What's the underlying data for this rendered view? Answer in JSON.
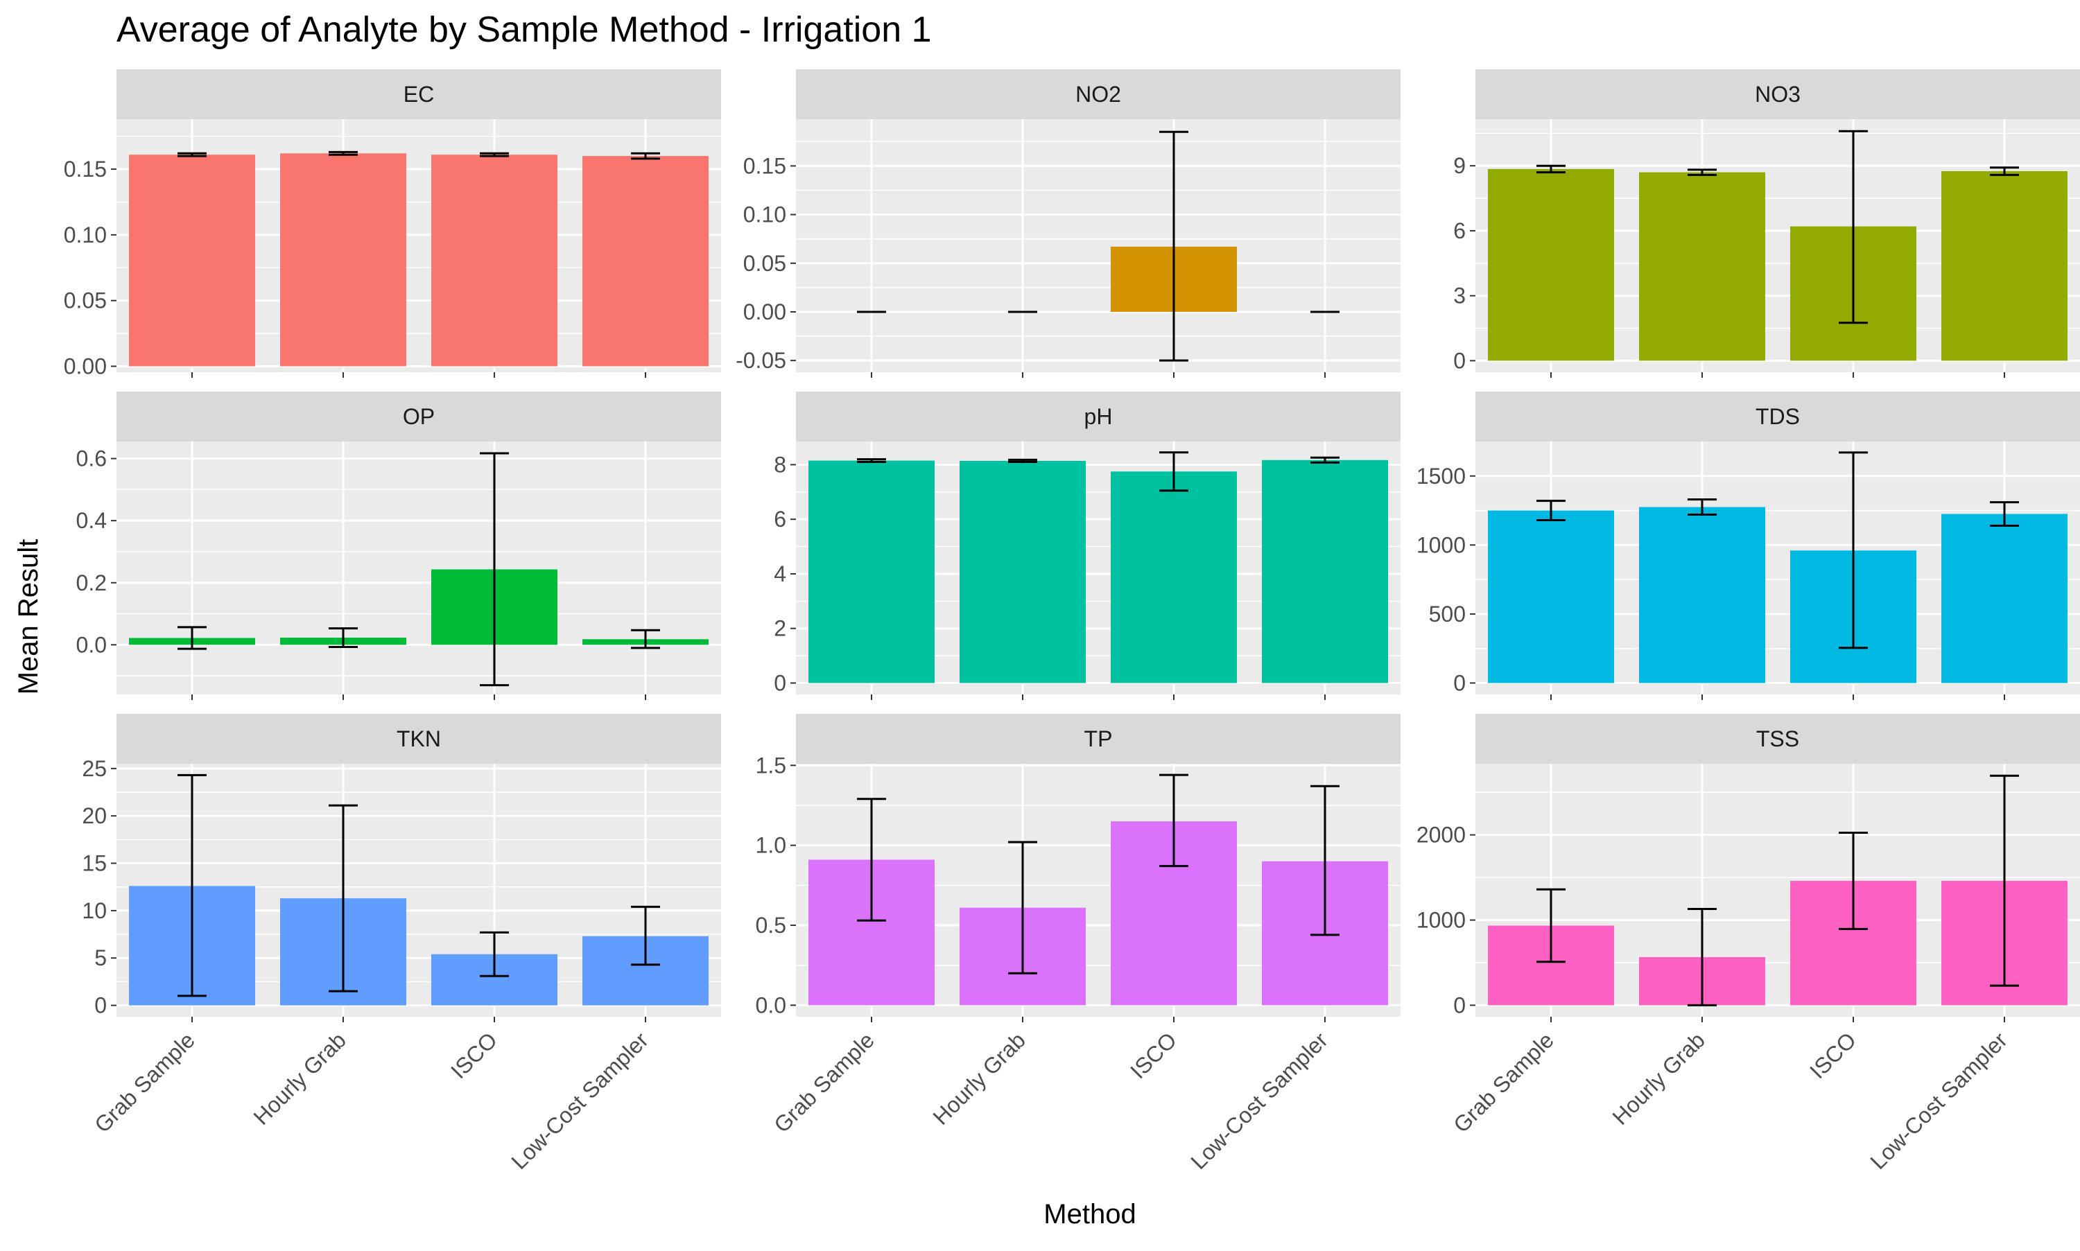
{
  "chart_data": {
    "type": "bar",
    "title": "Average of Analyte by Sample Method - Irrigation 1",
    "xlabel": "Method",
    "ylabel": "Mean Result",
    "categories": [
      "Grab Sample",
      "Hourly Grab",
      "ISCO",
      "Low-Cost Sampler"
    ],
    "grid": true,
    "legend": "none",
    "facets": [
      {
        "name": "EC",
        "color": "#F8766D",
        "ylim": [
          -0.0045,
          0.188
        ],
        "yticks": [
          0.0,
          0.05,
          0.1,
          0.15
        ],
        "tick_labels": [
          "0.00",
          "0.05",
          "0.10",
          "0.15"
        ],
        "values": [
          0.161,
          0.162,
          0.161,
          0.16
        ],
        "err_low": [
          0.16,
          0.161,
          0.16,
          0.158
        ],
        "err_high": [
          0.162,
          0.163,
          0.162,
          0.162
        ]
      },
      {
        "name": "NO2",
        "color": "#D39200",
        "ylim": [
          -0.062,
          0.198
        ],
        "yticks": [
          -0.05,
          0.0,
          0.05,
          0.1,
          0.15
        ],
        "tick_labels": [
          "-0.05",
          "0.00",
          "0.05",
          "0.10",
          "0.15"
        ],
        "values": [
          0.0,
          0.0,
          0.067,
          0.0
        ],
        "err_low": [
          0.0,
          0.0,
          -0.05,
          0.0
        ],
        "err_high": [
          0.0,
          0.0,
          0.185,
          0.0
        ]
      },
      {
        "name": "NO3",
        "color": "#93AA00",
        "ylim": [
          -0.53,
          11.15
        ],
        "yticks": [
          0,
          3,
          6,
          9
        ],
        "tick_labels": [
          "0",
          "3",
          "6",
          "9"
        ],
        "values": [
          8.85,
          8.7,
          6.2,
          8.75
        ],
        "err_low": [
          8.7,
          8.58,
          1.75,
          8.58
        ],
        "err_high": [
          9.0,
          8.82,
          10.6,
          8.92
        ]
      },
      {
        "name": "OP",
        "color": "#00BA38",
        "ylim": [
          -0.16,
          0.655
        ],
        "yticks": [
          0.0,
          0.2,
          0.4,
          0.6
        ],
        "tick_labels": [
          "0.0",
          "0.2",
          "0.4",
          "0.6"
        ],
        "values": [
          0.022,
          0.023,
          0.243,
          0.018
        ],
        "err_low": [
          -0.013,
          -0.007,
          -0.13,
          -0.01
        ],
        "err_high": [
          0.057,
          0.053,
          0.617,
          0.047
        ]
      },
      {
        "name": "pH",
        "color": "#00C19F",
        "ylim": [
          -0.42,
          8.85
        ],
        "yticks": [
          0,
          2,
          4,
          6,
          8
        ],
        "tick_labels": [
          "0",
          "2",
          "4",
          "6",
          "8"
        ],
        "values": [
          8.15,
          8.14,
          7.75,
          8.17
        ],
        "err_low": [
          8.1,
          8.1,
          7.05,
          8.08
        ],
        "err_high": [
          8.2,
          8.18,
          8.45,
          8.26
        ]
      },
      {
        "name": "TDS",
        "color": "#00B9E3",
        "ylim": [
          -83,
          1750
        ],
        "yticks": [
          0,
          500,
          1000,
          1500
        ],
        "tick_labels": [
          "0",
          "500",
          "1000",
          "1500"
        ],
        "values": [
          1250,
          1275,
          960,
          1225
        ],
        "err_low": [
          1180,
          1220,
          255,
          1140
        ],
        "err_high": [
          1320,
          1330,
          1670,
          1310
        ]
      },
      {
        "name": "TKN",
        "color": "#619CFF",
        "ylim": [
          -1.2,
          25.5
        ],
        "yticks": [
          0,
          5,
          10,
          15,
          20,
          25
        ],
        "tick_labels": [
          "0",
          "5",
          "10",
          "15",
          "20",
          "25"
        ],
        "values": [
          12.6,
          11.3,
          5.4,
          7.3
        ],
        "err_low": [
          1.0,
          1.5,
          3.1,
          4.3
        ],
        "err_high": [
          24.3,
          21.1,
          7.7,
          10.4
        ]
      },
      {
        "name": "TP",
        "color": "#DB72FB",
        "ylim": [
          -0.072,
          1.51
        ],
        "yticks": [
          0.0,
          0.5,
          1.0,
          1.5
        ],
        "tick_labels": [
          "0.0",
          "0.5",
          "1.0",
          "1.5"
        ],
        "values": [
          0.91,
          0.61,
          1.15,
          0.9
        ],
        "err_low": [
          0.53,
          0.2,
          0.87,
          0.44
        ],
        "err_high": [
          1.29,
          1.02,
          1.44,
          1.37
        ]
      },
      {
        "name": "TSS",
        "color": "#FF61C3",
        "ylim": [
          -135,
          2835
        ],
        "yticks": [
          0,
          1000,
          2000
        ],
        "tick_labels": [
          "0",
          "1000",
          "2000"
        ],
        "values": [
          935,
          565,
          1460,
          1460
        ],
        "err_low": [
          510,
          0,
          895,
          230
        ],
        "err_high": [
          1360,
          1130,
          2025,
          2695
        ]
      }
    ]
  }
}
